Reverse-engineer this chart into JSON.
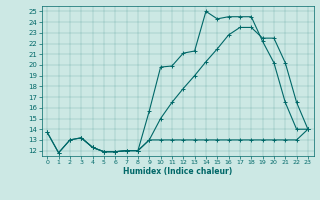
{
  "xlabel": "Humidex (Indice chaleur)",
  "xlim": [
    -0.5,
    23.5
  ],
  "ylim": [
    11.5,
    25.5
  ],
  "xticks": [
    0,
    1,
    2,
    3,
    4,
    5,
    6,
    7,
    8,
    9,
    10,
    11,
    12,
    13,
    14,
    15,
    16,
    17,
    18,
    19,
    20,
    21,
    22,
    23
  ],
  "yticks": [
    12,
    13,
    14,
    15,
    16,
    17,
    18,
    19,
    20,
    21,
    22,
    23,
    24,
    25
  ],
  "bg_color": "#cce8e4",
  "line_color": "#006868",
  "line1_x": [
    0,
    1,
    2,
    3,
    4,
    5,
    6,
    7,
    8,
    9,
    10,
    11,
    12,
    13,
    14,
    15,
    16,
    17,
    18,
    19,
    20,
    21,
    22,
    23
  ],
  "line1_y": [
    13.7,
    11.8,
    13.0,
    13.2,
    12.3,
    11.9,
    11.9,
    12.0,
    12.0,
    15.7,
    19.8,
    19.9,
    21.1,
    21.3,
    25.0,
    24.3,
    24.5,
    24.5,
    24.5,
    22.2,
    20.2,
    16.5,
    14.0,
    14.0
  ],
  "line2_x": [
    0,
    1,
    2,
    3,
    4,
    5,
    6,
    7,
    8,
    9,
    10,
    11,
    12,
    13,
    14,
    15,
    16,
    17,
    18,
    19,
    20,
    21,
    22,
    23
  ],
  "line2_y": [
    13.7,
    11.8,
    13.0,
    13.2,
    12.3,
    11.9,
    11.9,
    12.0,
    12.0,
    13.0,
    13.0,
    13.0,
    13.0,
    13.0,
    13.0,
    13.0,
    13.0,
    13.0,
    13.0,
    13.0,
    13.0,
    13.0,
    13.0,
    14.0
  ],
  "line3_x": [
    3,
    4,
    5,
    6,
    7,
    8,
    9,
    10,
    11,
    12,
    13,
    14,
    15,
    16,
    17,
    18,
    19,
    20,
    21,
    22,
    23
  ],
  "line3_y": [
    13.2,
    12.3,
    11.9,
    11.9,
    12.0,
    12.0,
    13.0,
    15.0,
    16.5,
    17.8,
    19.0,
    20.3,
    21.5,
    22.8,
    23.5,
    23.5,
    22.5,
    22.5,
    20.2,
    16.5,
    14.0
  ],
  "figsize": [
    3.2,
    2.0
  ],
  "dpi": 100
}
